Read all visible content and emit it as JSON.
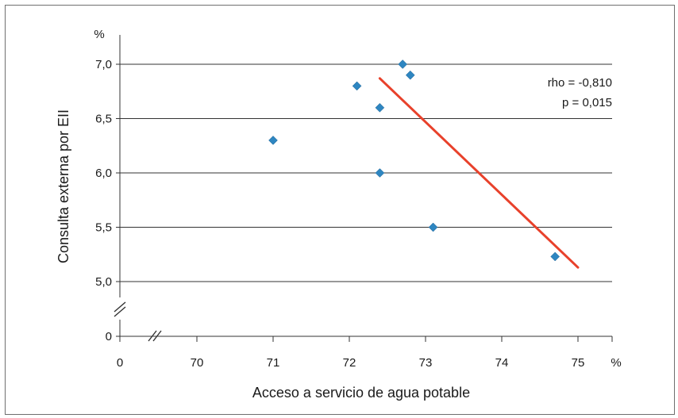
{
  "chart_data": {
    "type": "scatter",
    "title": "",
    "xlabel": "Acceso a servicio de agua potable",
    "ylabel": "Consulta externa por EII",
    "x_unit": "%",
    "y_unit": "%",
    "x_ticks": [
      "0",
      "70",
      "71",
      "72",
      "73",
      "74",
      "75"
    ],
    "y_ticks": [
      "0",
      "5,0",
      "5,5",
      "6,0",
      "6,5",
      "7,0"
    ],
    "axis_break": true,
    "xlim": [
      69.0,
      75.5
    ],
    "ylim": [
      5.0,
      7.25
    ],
    "grid": true,
    "grid_axis": "y",
    "legend": "none",
    "series": [
      {
        "values": [
          {
            "x": 72.4,
            "y": 6.6
          },
          {
            "x": 72.7,
            "y": 7.0
          },
          {
            "x": 72.8,
            "y": 6.9
          },
          {
            "x": 71.0,
            "y": 6.3
          },
          {
            "x": 72.1,
            "y": 6.8
          },
          {
            "x": 72.4,
            "y": 6.0
          },
          {
            "x": 73.1,
            "y": 5.5
          },
          {
            "x": 74.7,
            "y": 5.23
          }
        ]
      }
    ],
    "trendline": {
      "type": "linear",
      "from": {
        "x": 72.4,
        "y": 6.87
      },
      "to": {
        "x": 75.0,
        "y": 5.13
      }
    },
    "annotations": [
      "rho = -0,810",
      "p = 0,015"
    ],
    "colors": {
      "points": "#2e86c1",
      "trendline": "#e8412b",
      "grid": "#333333",
      "axis": "#333333",
      "frame": "#6f6f6f"
    }
  }
}
